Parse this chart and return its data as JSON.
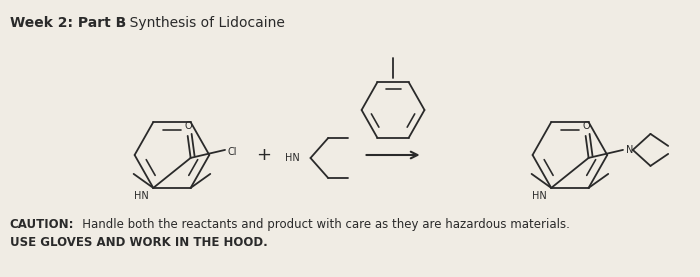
{
  "bg_color": "#f0ece4",
  "line_color": "#2a2a2a",
  "title_bold": "Week 2: Part B",
  "title_normal": " - Synthesis of Lidocaine",
  "caution_bold": "CAUTION:",
  "caution_normal": "   Handle both the reactants and product with care as they are hazardous materials.",
  "caution_line2": "USE GLOVES AND WORK IN THE HOOD.",
  "font_size_title": 10,
  "font_size_small": 7,
  "font_size_caution": 8.5
}
